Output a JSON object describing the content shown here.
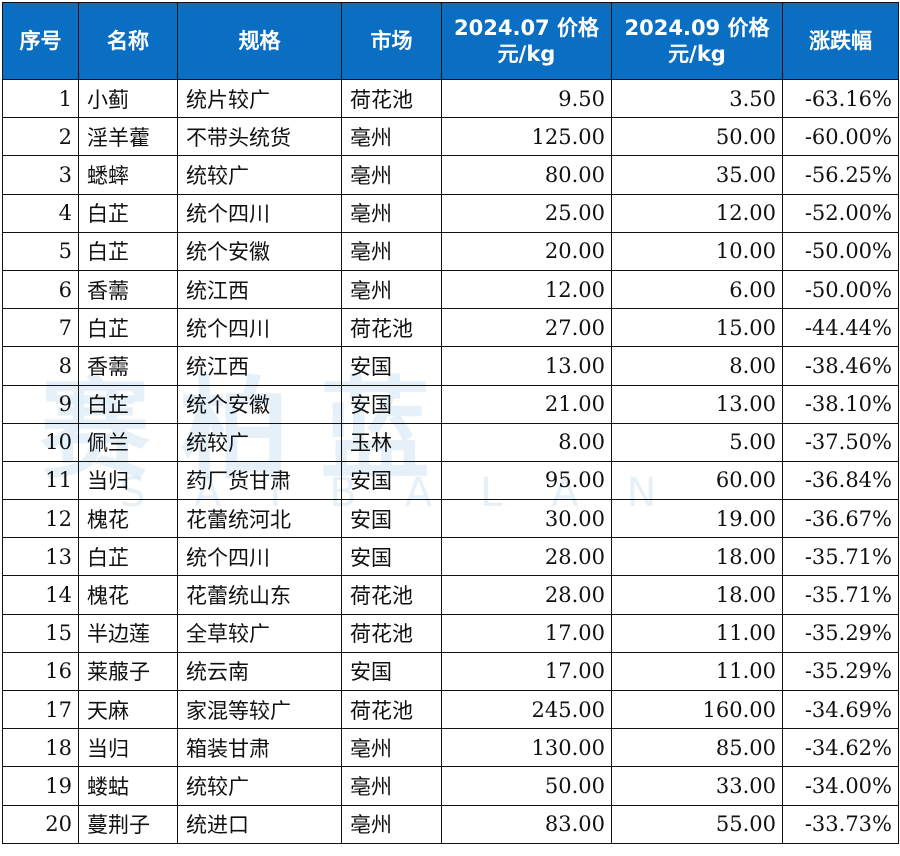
{
  "watermark": {
    "text": "赛柏蓝",
    "sub": "SAIBALAN"
  },
  "colors": {
    "header_bg": "#0a6fc2",
    "header_text": "#ffffff"
  },
  "table": {
    "headers": [
      "序号",
      "名称",
      "规格",
      "市场",
      "2024.07 价格\n元/kg",
      "2024.09 价格\n元/kg",
      "涨跌幅"
    ],
    "rows": [
      [
        "1",
        "小蓟",
        "统片较广",
        "荷花池",
        "9.50",
        "3.50",
        "-63.16%"
      ],
      [
        "2",
        "淫羊藿",
        "不带头统货",
        "亳州",
        "125.00",
        "50.00",
        "-60.00%"
      ],
      [
        "3",
        "蟋蟀",
        "统较广",
        "亳州",
        "80.00",
        "35.00",
        "-56.25%"
      ],
      [
        "4",
        "白芷",
        "统个四川",
        "亳州",
        "25.00",
        "12.00",
        "-52.00%"
      ],
      [
        "5",
        "白芷",
        "统个安徽",
        "亳州",
        "20.00",
        "10.00",
        "-50.00%"
      ],
      [
        "6",
        "香薷",
        "统江西",
        "亳州",
        "12.00",
        "6.00",
        "-50.00%"
      ],
      [
        "7",
        "白芷",
        "统个四川",
        "荷花池",
        "27.00",
        "15.00",
        "-44.44%"
      ],
      [
        "8",
        "香薷",
        "统江西",
        "安国",
        "13.00",
        "8.00",
        "-38.46%"
      ],
      [
        "9",
        "白芷",
        "统个安徽",
        "安国",
        "21.00",
        "13.00",
        "-38.10%"
      ],
      [
        "10",
        "佩兰",
        "统较广",
        "玉林",
        "8.00",
        "5.00",
        "-37.50%"
      ],
      [
        "11",
        "当归",
        "药厂货甘肃",
        "安国",
        "95.00",
        "60.00",
        "-36.84%"
      ],
      [
        "12",
        "槐花",
        "花蕾统河北",
        "安国",
        "30.00",
        "19.00",
        "-36.67%"
      ],
      [
        "13",
        "白芷",
        "统个四川",
        "安国",
        "28.00",
        "18.00",
        "-35.71%"
      ],
      [
        "14",
        "槐花",
        "花蕾统山东",
        "荷花池",
        "28.00",
        "18.00",
        "-35.71%"
      ],
      [
        "15",
        "半边莲",
        "全草较广",
        "荷花池",
        "17.00",
        "11.00",
        "-35.29%"
      ],
      [
        "16",
        "莱菔子",
        "统云南",
        "安国",
        "17.00",
        "11.00",
        "-35.29%"
      ],
      [
        "17",
        "天麻",
        "家混等较广",
        "荷花池",
        "245.00",
        "160.00",
        "-34.69%"
      ],
      [
        "18",
        "当归",
        "箱装甘肃",
        "亳州",
        "130.00",
        "85.00",
        "-34.62%"
      ],
      [
        "19",
        "蝼蛄",
        "统较广",
        "亳州",
        "50.00",
        "33.00",
        "-34.00%"
      ],
      [
        "20",
        "蔓荆子",
        "统进口",
        "亳州",
        "83.00",
        "55.00",
        "-33.73%"
      ]
    ]
  }
}
